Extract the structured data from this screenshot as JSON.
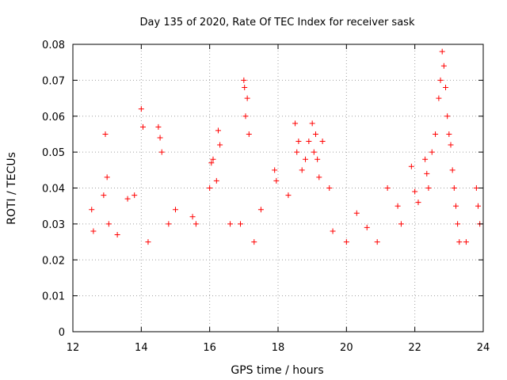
{
  "chart_data": {
    "type": "scatter",
    "title": "Day 135 of 2020, Rate Of TEC Index for receiver sask",
    "xlabel": "GPS time / hours",
    "ylabel": "ROTI / TECUs",
    "xlim": [
      12,
      24
    ],
    "ylim": [
      0,
      0.08
    ],
    "x_ticks": [
      "12",
      "14",
      "16",
      "18",
      "20",
      "22",
      "24"
    ],
    "y_ticks": [
      "0",
      "0.01",
      "0.02",
      "0.03",
      "0.04",
      "0.05",
      "0.06",
      "0.07",
      "0.08"
    ],
    "grid": true,
    "marker": "plus",
    "color": "#ff0000",
    "series": [
      {
        "x": [
          12.55,
          12.6,
          12.9,
          12.95,
          13.0,
          13.05,
          13.3,
          13.6,
          13.8,
          14.0,
          14.05,
          14.2,
          14.5,
          14.55,
          14.6,
          14.8,
          15.0,
          15.5,
          15.6,
          16.0,
          16.05,
          16.1,
          16.2,
          16.25,
          16.3,
          16.6,
          16.9,
          17.0,
          17.02,
          17.05,
          17.1,
          17.15,
          17.3,
          17.5,
          17.9,
          17.95,
          18.3,
          18.5,
          18.55,
          18.6,
          18.7,
          18.8,
          18.9,
          19.0,
          19.05,
          19.1,
          19.15,
          19.2,
          19.3,
          19.5,
          19.6,
          20.0,
          20.3,
          20.6,
          20.9,
          21.2,
          21.5,
          21.6,
          21.9,
          22.0,
          22.1,
          22.3,
          22.35,
          22.4,
          22.5,
          22.6,
          22.7,
          22.75,
          22.8,
          22.85,
          22.9,
          22.95,
          23.0,
          23.05,
          23.1,
          23.15,
          23.2,
          23.25,
          23.3,
          23.5,
          23.8,
          23.85,
          23.9
        ],
        "y": [
          0.034,
          0.028,
          0.038,
          0.055,
          0.043,
          0.03,
          0.027,
          0.037,
          0.038,
          0.062,
          0.057,
          0.025,
          0.057,
          0.054,
          0.05,
          0.03,
          0.034,
          0.032,
          0.03,
          0.04,
          0.047,
          0.048,
          0.042,
          0.056,
          0.052,
          0.03,
          0.03,
          0.07,
          0.068,
          0.06,
          0.065,
          0.055,
          0.025,
          0.034,
          0.045,
          0.042,
          0.038,
          0.058,
          0.05,
          0.053,
          0.045,
          0.048,
          0.053,
          0.058,
          0.05,
          0.055,
          0.048,
          0.043,
          0.053,
          0.04,
          0.028,
          0.025,
          0.033,
          0.029,
          0.025,
          0.04,
          0.035,
          0.03,
          0.046,
          0.039,
          0.036,
          0.048,
          0.044,
          0.04,
          0.05,
          0.055,
          0.065,
          0.07,
          0.078,
          0.074,
          0.068,
          0.06,
          0.055,
          0.052,
          0.045,
          0.04,
          0.035,
          0.03,
          0.025,
          0.025,
          0.04,
          0.035,
          0.03
        ]
      }
    ]
  }
}
